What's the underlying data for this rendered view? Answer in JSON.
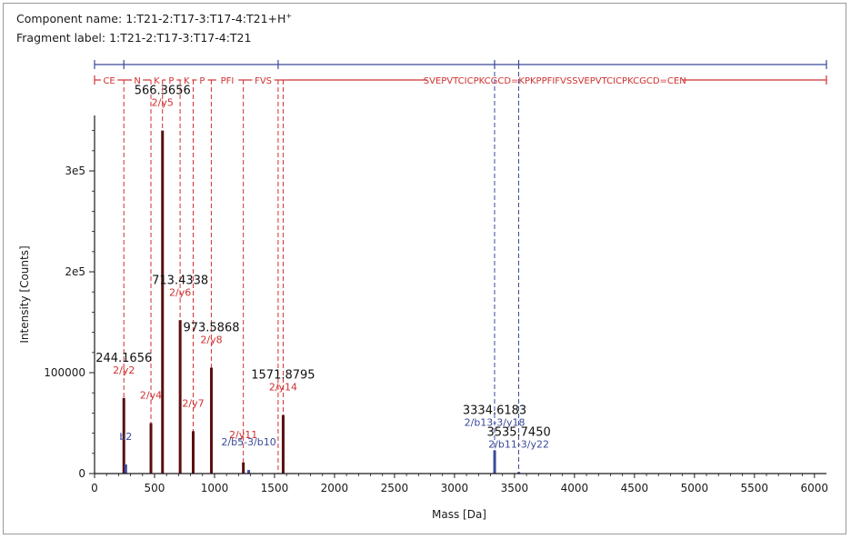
{
  "header": {
    "component_name_label": "Component name: ",
    "component_name_value": "1:T21-2:T17-3:T17-4:T21+H",
    "component_name_sup": "+",
    "fragment_label_label": "Fragment label: ",
    "fragment_label_value": "1:T21-2:T17-3:T17-4:T21"
  },
  "colors": {
    "fragment_red": "#d03030",
    "fragment_blue": "#3a4a9a",
    "peak": "#5a0f0f",
    "axis": "#1a1a1a"
  },
  "chart_data": {
    "type": "bar",
    "xlabel": "Mass [Da]",
    "ylabel": "Intensity [Counts]",
    "xlim": [
      0,
      6100
    ],
    "ylim": [
      0,
      355000
    ],
    "x_ticks": [
      0,
      500,
      1000,
      1500,
      2000,
      2500,
      3000,
      3500,
      4000,
      4500,
      5000,
      5500,
      6000
    ],
    "y_ticks": [
      {
        "value": 0,
        "label": "0"
      },
      {
        "value": 100000,
        "label": "100000"
      },
      {
        "value": 200000,
        "label": "2e5"
      },
      {
        "value": 300000,
        "label": "3e5"
      }
    ],
    "peaks": [
      {
        "mass": 244.1656,
        "intensity": 75000,
        "mass_label": "244.1656",
        "ion_label": "2/y2",
        "ion_color": "red"
      },
      {
        "mass": 260,
        "intensity": 9000,
        "mass_label": "",
        "ion_label": "b2",
        "ion_color": "blue"
      },
      {
        "mass": 470,
        "intensity": 50000,
        "mass_label": "",
        "ion_label": "2/y4",
        "ion_color": "red"
      },
      {
        "mass": 566.3656,
        "intensity": 340000,
        "mass_label": "566.3656",
        "ion_label": "2/y5",
        "ion_color": "red"
      },
      {
        "mass": 713.4338,
        "intensity": 152000,
        "mass_label": "713.4338",
        "ion_label": "2/y6",
        "ion_color": "red"
      },
      {
        "mass": 822,
        "intensity": 42000,
        "mass_label": "",
        "ion_label": "2/y7",
        "ion_color": "red"
      },
      {
        "mass": 973.5868,
        "intensity": 105000,
        "mass_label": "973.5868",
        "ion_label": "2/y8",
        "ion_color": "red"
      },
      {
        "mass": 1240,
        "intensity": 11000,
        "mass_label": "",
        "ion_label": "2/y11",
        "ion_color": "red"
      },
      {
        "mass": 1285,
        "intensity": 3500,
        "mass_label": "",
        "ion_label": "2/b5-3/b10",
        "ion_color": "blue"
      },
      {
        "mass": 1571.8795,
        "intensity": 58000,
        "mass_label": "1571.8795",
        "ion_label": "2/y14",
        "ion_color": "red"
      },
      {
        "mass": 3334.6183,
        "intensity": 23000,
        "mass_label": "3334.6183",
        "ion_label": "2/b13-3/y18",
        "ion_color": "blue"
      },
      {
        "mass": 3535.745,
        "intensity": 1500,
        "mass_label": "3535.7450",
        "ion_label": "2/b11-3/y22",
        "ion_color": "blue"
      }
    ],
    "sequence_segments": [
      {
        "label": "CE",
        "start": 0,
        "end": 244,
        "color": "red"
      },
      {
        "label": "N",
        "start": 244,
        "end": 470,
        "color": "red"
      },
      {
        "label": "K",
        "start": 470,
        "end": 566,
        "color": "red"
      },
      {
        "label": "P",
        "start": 566,
        "end": 713,
        "color": "red"
      },
      {
        "label": "K",
        "start": 713,
        "end": 822,
        "color": "red"
      },
      {
        "label": "P",
        "start": 822,
        "end": 973,
        "color": "red"
      },
      {
        "label": "PFI",
        "start": 973,
        "end": 1240,
        "color": "red"
      },
      {
        "label": "FVS",
        "start": 1240,
        "end": 1572,
        "color": "red"
      },
      {
        "label": "SVEPVTCICPKCGCD=KPKPPFIFVSSVEPVTCICPKCGCD=CEN",
        "start": 1572,
        "end": 6100,
        "color": "red"
      }
    ],
    "blue_markers": [
      0,
      244,
      1530,
      3334,
      3535,
      6100
    ],
    "red_dashed_positions": [
      244,
      470,
      566,
      713,
      822,
      973,
      1240,
      1530,
      1572
    ],
    "blue_dashed_positions": [
      3334,
      3535
    ]
  }
}
